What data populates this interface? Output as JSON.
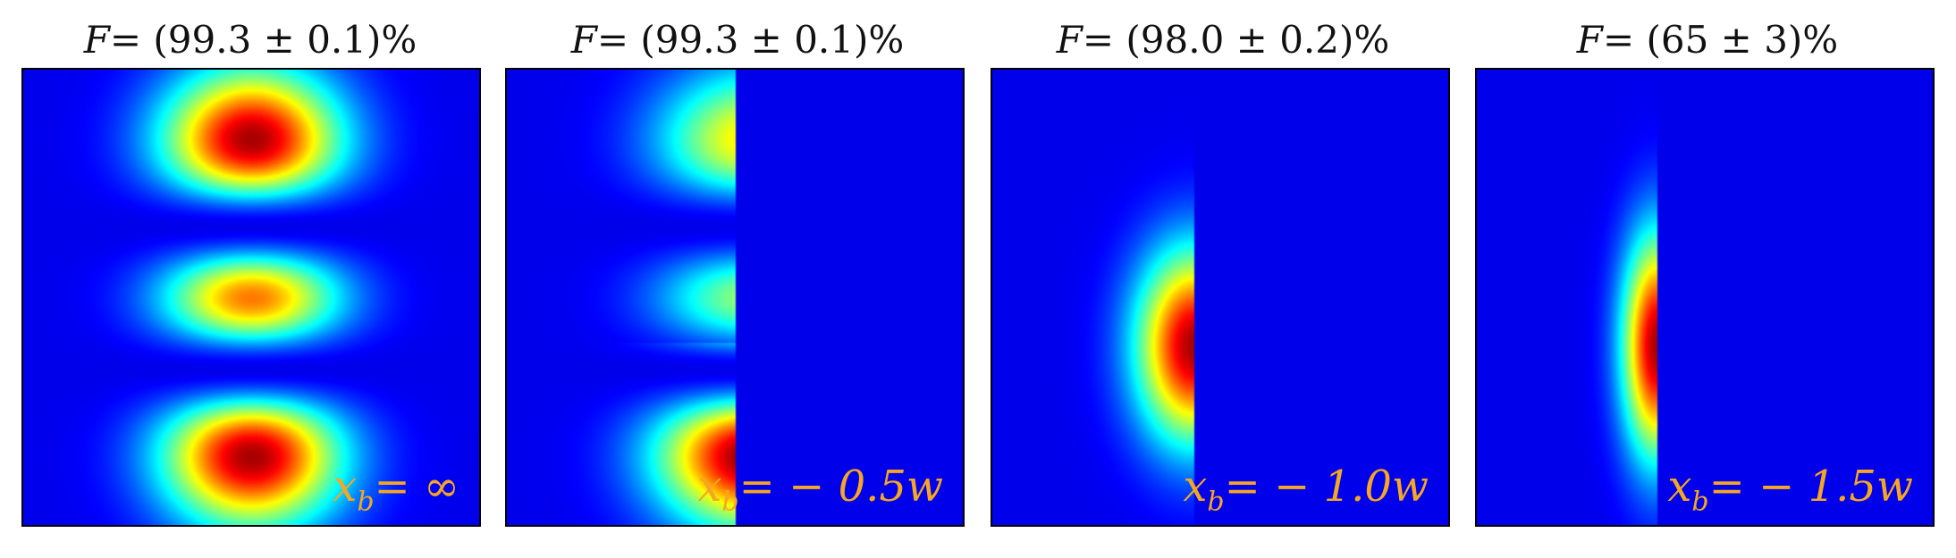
{
  "panels": [
    {
      "title_prefix": "F",
      "title_value": "= (99.3 ± 0.1)%",
      "label_var": "x",
      "label_sub": "b",
      "label_value": "= ∞",
      "barrier": null
    },
    {
      "title_prefix": "F",
      "title_value": "= (99.3 ± 0.1)%",
      "label_var": "x",
      "label_sub": "b",
      "label_value": "= − 0.5w",
      "barrier": -0.5
    },
    {
      "title_prefix": "F",
      "title_value": "= (98.0 ± 0.2)%",
      "label_var": "x",
      "label_sub": "b",
      "label_value": "= − 1.0w",
      "barrier": -1.0
    },
    {
      "title_prefix": "F",
      "title_value": "= (65 ± 3)%",
      "label_var": "x",
      "label_sub": "b",
      "label_value": "= − 1.5w",
      "barrier": -1.5
    }
  ],
  "colormap": "jet"
}
